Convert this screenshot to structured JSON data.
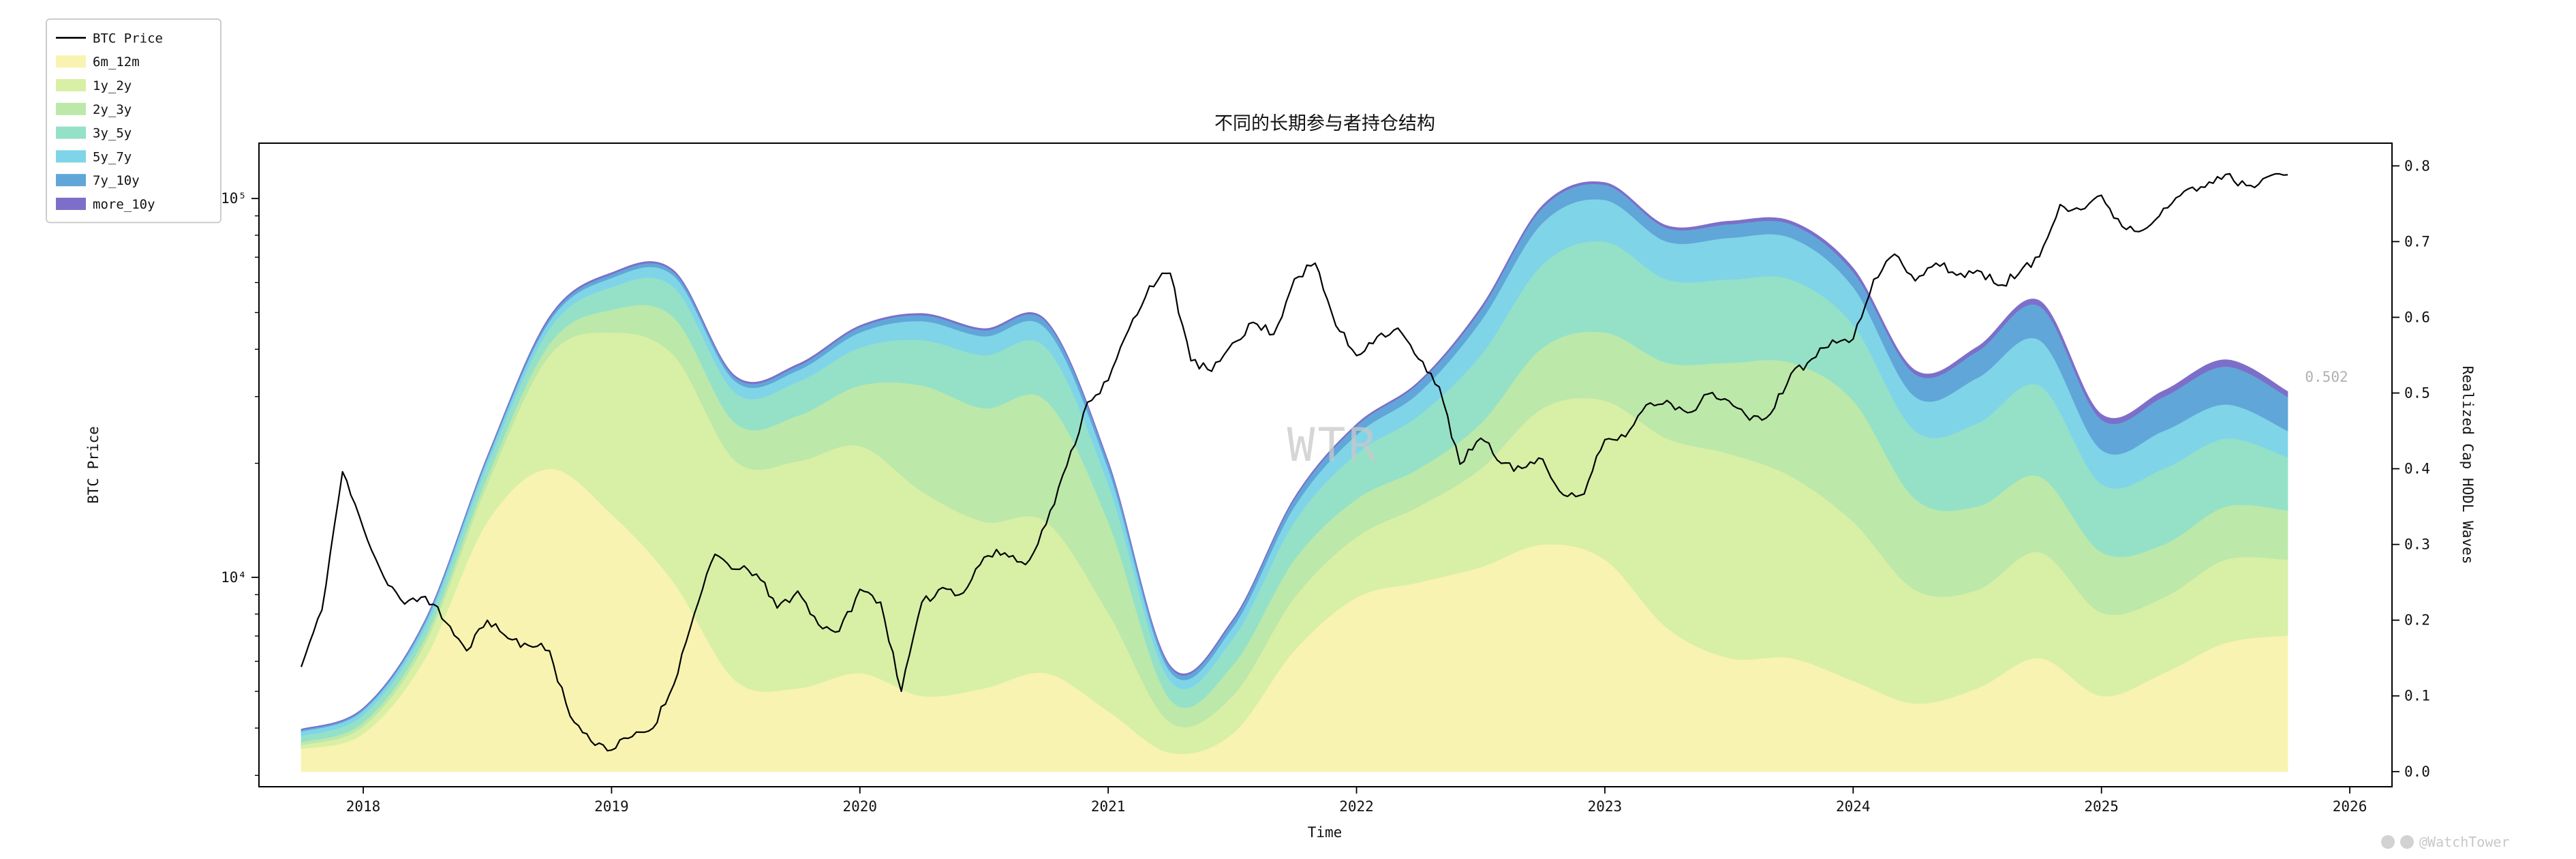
{
  "figure": {
    "background": "#ffffff"
  },
  "watermarks": {
    "center": "WTR",
    "credit": "@WatchTower"
  },
  "chart_data": {
    "type": "area",
    "title": "不同的长期参与者持仓结构",
    "xlabel": "Time",
    "ylabel_left": "BTC Price",
    "ylabel_right": "Realized Cap HODL Waves",
    "grid": false,
    "legend_position": "upper-left-outside",
    "x_axis": {
      "min": 2017.58,
      "max": 2026.17,
      "ticks": [
        2018,
        2019,
        2020,
        2021,
        2022,
        2023,
        2024,
        2025,
        2026
      ]
    },
    "left_axis": {
      "scale": "log",
      "min": 2800,
      "max": 140000,
      "ticks": [
        {
          "value": 10000,
          "label": "10⁴"
        },
        {
          "value": 100000,
          "label": "10⁵"
        }
      ]
    },
    "right_axis": {
      "min": -0.02,
      "max": 0.83,
      "ticks": [
        0,
        0.1,
        0.2,
        0.3,
        0.4,
        0.5,
        0.6,
        0.7,
        0.8
      ]
    },
    "btc_price": {
      "name": "BTC Price",
      "color": "#000000",
      "x_start": 2017.75,
      "x_step_years": 0.0833333,
      "render_seed": 11,
      "values": [
        5800,
        8200,
        19000,
        13500,
        10000,
        8500,
        8900,
        7600,
        6400,
        7700,
        6900,
        6600,
        6400,
        4300,
        3700,
        3500,
        3800,
        4000,
        5200,
        8000,
        11500,
        10500,
        10200,
        8300,
        9200,
        7500,
        7200,
        9300,
        8600,
        5000,
        8600,
        9400,
        9100,
        11300,
        11600,
        10800,
        13800,
        19700,
        29000,
        33100,
        45200,
        58800,
        63500,
        37300,
        35000,
        41500,
        47100,
        43800,
        61300,
        67500,
        46200,
        38500,
        43200,
        45500,
        37700,
        31800,
        19900,
        23300,
        20000,
        19400,
        20500,
        16500,
        16600,
        23100,
        23500,
        28500,
        29300,
        27200,
        30500,
        29200,
        26000,
        27000,
        34500,
        37700,
        42300,
        42600,
        61200,
        71300,
        60600,
        67500,
        62700,
        64600,
        59000,
        63300,
        70200,
        96400,
        93400,
        102000,
        84400,
        82500,
        94200,
        104600,
        107100,
        115800,
        108200,
        114000,
        115500
      ]
    },
    "hodl_bands": {
      "x": [
        2017.75,
        2018.0,
        2018.25,
        2018.5,
        2018.75,
        2019.0,
        2019.25,
        2019.5,
        2019.75,
        2020.0,
        2020.25,
        2020.5,
        2020.75,
        2021.0,
        2021.25,
        2021.5,
        2021.75,
        2022.0,
        2022.25,
        2022.5,
        2022.75,
        2023.0,
        2023.25,
        2023.5,
        2023.75,
        2024.0,
        2024.25,
        2024.5,
        2024.75,
        2025.0,
        2025.25,
        2025.5,
        2025.75
      ],
      "stack_order": [
        "6m_12m",
        "1y_2y",
        "2y_3y",
        "3y_5y",
        "5y_7y",
        "7y_10y",
        "more_10y"
      ],
      "series": [
        {
          "name": "6m_12m",
          "color": "#f8f3b0",
          "values": [
            0.03,
            0.05,
            0.15,
            0.33,
            0.4,
            0.34,
            0.25,
            0.12,
            0.11,
            0.13,
            0.1,
            0.11,
            0.13,
            0.08,
            0.025,
            0.05,
            0.16,
            0.23,
            0.25,
            0.27,
            0.3,
            0.28,
            0.19,
            0.15,
            0.15,
            0.12,
            0.09,
            0.11,
            0.15,
            0.1,
            0.13,
            0.17,
            0.18
          ]
        },
        {
          "name": "1y_2y",
          "color": "#d8efa6",
          "values": [
            0.005,
            0.01,
            0.02,
            0.05,
            0.15,
            0.24,
            0.3,
            0.29,
            0.3,
            0.3,
            0.27,
            0.22,
            0.2,
            0.13,
            0.04,
            0.05,
            0.07,
            0.08,
            0.1,
            0.13,
            0.18,
            0.21,
            0.25,
            0.27,
            0.24,
            0.21,
            0.15,
            0.13,
            0.14,
            0.11,
            0.1,
            0.11,
            0.1
          ]
        },
        {
          "name": "2y_3y",
          "color": "#bce8aa",
          "values": [
            0.004,
            0.005,
            0.008,
            0.01,
            0.015,
            0.03,
            0.05,
            0.05,
            0.06,
            0.08,
            0.14,
            0.15,
            0.16,
            0.12,
            0.03,
            0.04,
            0.05,
            0.05,
            0.05,
            0.06,
            0.08,
            0.09,
            0.1,
            0.12,
            0.15,
            0.16,
            0.12,
            0.11,
            0.1,
            0.08,
            0.07,
            0.07,
            0.065
          ]
        },
        {
          "name": "3y_5y",
          "color": "#94e1c8",
          "values": [
            0.008,
            0.01,
            0.012,
            0.015,
            0.02,
            0.03,
            0.04,
            0.04,
            0.045,
            0.05,
            0.06,
            0.07,
            0.07,
            0.05,
            0.025,
            0.035,
            0.05,
            0.06,
            0.07,
            0.09,
            0.11,
            0.12,
            0.11,
            0.11,
            0.11,
            0.1,
            0.09,
            0.11,
            0.12,
            0.09,
            0.1,
            0.09,
            0.07
          ]
        },
        {
          "name": "5y_7y",
          "color": "#7fd4e8",
          "values": [
            0.006,
            0.006,
            0.007,
            0.008,
            0.01,
            0.012,
            0.015,
            0.015,
            0.015,
            0.02,
            0.025,
            0.025,
            0.025,
            0.02,
            0.012,
            0.015,
            0.02,
            0.025,
            0.03,
            0.045,
            0.055,
            0.055,
            0.05,
            0.055,
            0.055,
            0.05,
            0.045,
            0.06,
            0.06,
            0.045,
            0.05,
            0.045,
            0.035
          ]
        },
        {
          "name": "7y_10y",
          "color": "#61a6d8",
          "values": [
            0.002,
            0.002,
            0.003,
            0.003,
            0.004,
            0.005,
            0.005,
            0.005,
            0.006,
            0.007,
            0.008,
            0.008,
            0.009,
            0.008,
            0.006,
            0.008,
            0.01,
            0.012,
            0.013,
            0.015,
            0.02,
            0.02,
            0.018,
            0.018,
            0.018,
            0.02,
            0.03,
            0.035,
            0.045,
            0.04,
            0.045,
            0.05,
            0.045
          ]
        },
        {
          "name": "more_10y",
          "color": "#7d6fc9",
          "values": [
            0.001,
            0.001,
            0.001,
            0.001,
            0.002,
            0.002,
            0.002,
            0.002,
            0.002,
            0.002,
            0.002,
            0.002,
            0.002,
            0.002,
            0.002,
            0.002,
            0.002,
            0.002,
            0.002,
            0.003,
            0.003,
            0.003,
            0.003,
            0.004,
            0.004,
            0.005,
            0.005,
            0.006,
            0.007,
            0.007,
            0.008,
            0.009,
            0.007
          ]
        }
      ]
    },
    "annotation": {
      "text": "0.502",
      "x": 2025.82,
      "y": 0.515
    },
    "current_total_hodl_value": 0.502
  }
}
